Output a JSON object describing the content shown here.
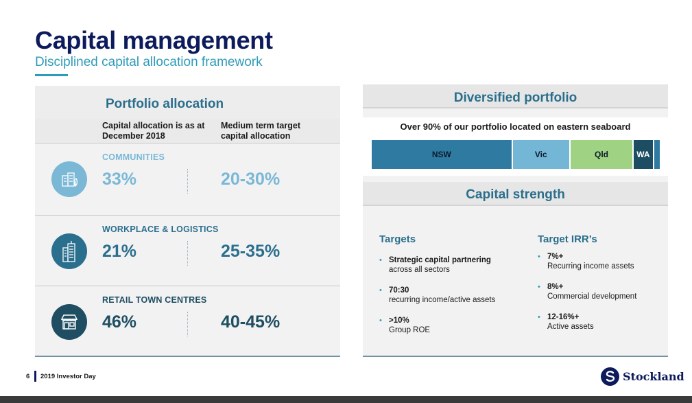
{
  "slide": {
    "title": "Capital management",
    "subtitle": "Disciplined capital allocation framework"
  },
  "portfolio_allocation": {
    "title": "Portfolio allocation",
    "col1_header": "Capital allocation is as at December 2018",
    "col2_header": "Medium term target capital allocation",
    "rows": [
      {
        "label": "COMMUNITIES",
        "current": "33%",
        "target": "20-30%",
        "color": "#7ab8d6",
        "icon": "buildings-leaf-icon"
      },
      {
        "label": "WORKPLACE & LOGISTICS",
        "current": "21%",
        "target": "25-35%",
        "color": "#2b6f8e",
        "icon": "office-tower-icon"
      },
      {
        "label": "RETAIL TOWN CENTRES",
        "current": "46%",
        "target": "40-45%",
        "color": "#1f4e63",
        "icon": "storefront-icon"
      }
    ]
  },
  "diversified_portfolio": {
    "title": "Diversified portfolio",
    "note": "Over 90% of our portfolio located on eastern seaboard",
    "segments": [
      {
        "label": "NSW",
        "share": 0.49,
        "color": "#2e7aa1",
        "text_color": "#0d1a2a"
      },
      {
        "label": "Vic",
        "share": 0.2,
        "color": "#74b6d6",
        "text_color": "#0d1a2a"
      },
      {
        "label": "Qld",
        "share": 0.22,
        "color": "#9fd383",
        "text_color": "#0d1a2a"
      },
      {
        "label": "WA",
        "share": 0.07,
        "color": "#1d4d63",
        "text_color": "#ffffff"
      },
      {
        "label": "",
        "share": 0.02,
        "color": "#2e7aa1",
        "text_color": "#ffffff"
      }
    ]
  },
  "capital_strength": {
    "title": "Capital strength",
    "targets_title": "Targets",
    "targets": [
      {
        "bold": "Strategic capital partnering",
        "text": "across all sectors"
      },
      {
        "bold": "70:30",
        "text": "recurring income/active assets"
      },
      {
        "bold": ">10%",
        "text": "Group ROE"
      }
    ],
    "irr_title": "Target IRR’s",
    "irrs": [
      {
        "bold": "7%+",
        "text": "Recurring income assets"
      },
      {
        "bold": "8%+",
        "text": "Commercial development"
      },
      {
        "bold": "12-16%+",
        "text": "Active assets"
      }
    ]
  },
  "footer": {
    "page_number": "6",
    "event": "2019 Investor Day",
    "brand": "Stockland"
  },
  "colors": {
    "navy": "#0d1a5c",
    "teal": "#2a6e8c",
    "accent": "#2e9bb8"
  }
}
